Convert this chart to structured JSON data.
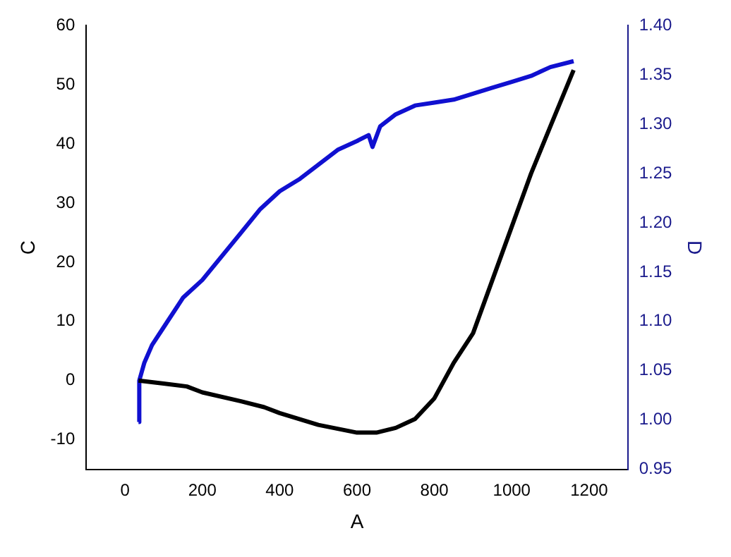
{
  "chart_data": {
    "type": "line",
    "xlabel": "A",
    "ylabel": "C",
    "y2label": "D",
    "xlim": [
      -100,
      1300
    ],
    "xticks": [
      0,
      200,
      400,
      600,
      800,
      1000,
      1200
    ],
    "ylim": [
      -15,
      60
    ],
    "yticks": [
      -10,
      0,
      10,
      20,
      30,
      40,
      50,
      60
    ],
    "y2lim": [
      0.95,
      1.4
    ],
    "y2ticks": [
      {
        "value": 0.95,
        "label": "0.95"
      },
      {
        "value": 1,
        "label": "1.00"
      },
      {
        "value": 1.05,
        "label": "1.05"
      },
      {
        "value": 1.1,
        "label": "1.10"
      },
      {
        "value": 1.15,
        "label": "1.15"
      },
      {
        "value": 1.2,
        "label": "1.20"
      },
      {
        "value": 1.25,
        "label": "1.25"
      },
      {
        "value": 1.3,
        "label": "1.30"
      },
      {
        "value": 1.35,
        "label": "1.35"
      },
      {
        "value": 1.4,
        "label": "1.40"
      }
    ],
    "grid": false,
    "legend": false,
    "marker": "none",
    "line_style": "solid",
    "series": [
      {
        "color": "#000000",
        "x": [
          35,
          100,
          160,
          200,
          300,
          360,
          400,
          500,
          600,
          650,
          700,
          750,
          800,
          850,
          900,
          950,
          1000,
          1050,
          1100,
          1160
        ],
        "values": [
          0,
          -0.5,
          -1,
          -2,
          -3.5,
          -4.5,
          -5.5,
          -7.5,
          -8.8,
          -8.8,
          -8,
          -6.5,
          -3,
          3,
          8,
          17,
          26,
          35,
          43,
          52.5
        ]
      },
      {
        "color": "#1010d0",
        "axis": "y2",
        "x": [
          35,
          37,
          50,
          70,
          100,
          150,
          200,
          250,
          300,
          350,
          400,
          450,
          500,
          550,
          600,
          630,
          640,
          660,
          700,
          750,
          800,
          850,
          900,
          950,
          1000,
          1050,
          1100,
          1160
        ],
        "values": [
          0.998,
          1.04,
          1.058,
          1.076,
          1.094,
          1.124,
          1.142,
          1.166,
          1.19,
          1.214,
          1.232,
          1.244,
          1.259,
          1.274,
          1.283,
          1.289,
          1.277,
          1.298,
          1.31,
          1.319,
          1.322,
          1.325,
          1.331,
          1.337,
          1.343,
          1.349,
          1.358,
          1.364
        ]
      }
    ]
  }
}
